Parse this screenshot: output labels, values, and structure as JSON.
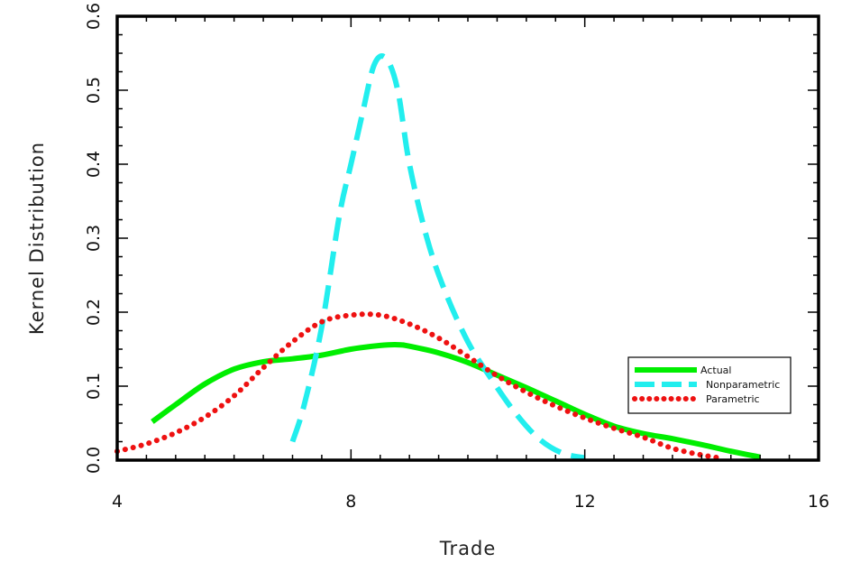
{
  "chart_data": {
    "type": "line",
    "title": "",
    "xlabel": "Trade",
    "ylabel": "Kernel Distribution",
    "xlim": [
      4,
      16
    ],
    "ylim": [
      0.0,
      0.6
    ],
    "xticks": [
      4,
      8,
      12,
      16
    ],
    "xtick_labels": [
      "4",
      "8",
      "12",
      "16"
    ],
    "yticks": [
      0.0,
      0.1,
      0.2,
      0.3,
      0.4,
      0.5,
      0.6
    ],
    "ytick_labels": [
      "0.0",
      "0.1",
      "0.2",
      "0.3",
      "0.4",
      "0.5",
      "0.6"
    ],
    "grid": false,
    "legend_position": "right",
    "series": [
      {
        "name": "Actual",
        "color": "#00ee00",
        "style": "solid",
        "x": [
          4.6,
          5.0,
          5.5,
          6.0,
          6.5,
          7.0,
          7.5,
          8.0,
          8.5,
          8.8,
          9.0,
          9.5,
          10.0,
          10.5,
          11.0,
          11.5,
          12.0,
          12.5,
          13.0,
          13.5,
          14.0,
          14.5,
          15.0
        ],
        "y": [
          0.052,
          0.075,
          0.103,
          0.123,
          0.133,
          0.137,
          0.142,
          0.15,
          0.155,
          0.156,
          0.154,
          0.145,
          0.132,
          0.115,
          0.098,
          0.08,
          0.062,
          0.046,
          0.036,
          0.029,
          0.021,
          0.012,
          0.004
        ]
      },
      {
        "name": "Nonparametric",
        "color": "#22eeee",
        "style": "dashed",
        "x": [
          7.0,
          7.2,
          7.5,
          7.8,
          8.0,
          8.2,
          8.4,
          8.6,
          8.8,
          9.0,
          9.3,
          9.6,
          10.0,
          10.4,
          10.8,
          11.2,
          11.6,
          12.0
        ],
        "y": [
          0.025,
          0.075,
          0.18,
          0.33,
          0.4,
          0.47,
          0.535,
          0.543,
          0.5,
          0.4,
          0.3,
          0.23,
          0.16,
          0.11,
          0.065,
          0.03,
          0.01,
          0.003
        ]
      },
      {
        "name": "Parametric",
        "color": "#ee1111",
        "style": "dotted",
        "x": [
          4.0,
          4.5,
          5.0,
          5.5,
          6.0,
          6.5,
          7.0,
          7.5,
          8.0,
          8.5,
          9.0,
          9.5,
          10.0,
          10.5,
          11.0,
          11.5,
          12.0,
          12.5,
          13.0,
          13.5,
          14.0,
          14.3
        ],
        "y": [
          0.012,
          0.022,
          0.037,
          0.058,
          0.087,
          0.125,
          0.16,
          0.187,
          0.196,
          0.196,
          0.184,
          0.165,
          0.14,
          0.114,
          0.092,
          0.073,
          0.057,
          0.043,
          0.031,
          0.016,
          0.007,
          0.003
        ]
      }
    ]
  }
}
